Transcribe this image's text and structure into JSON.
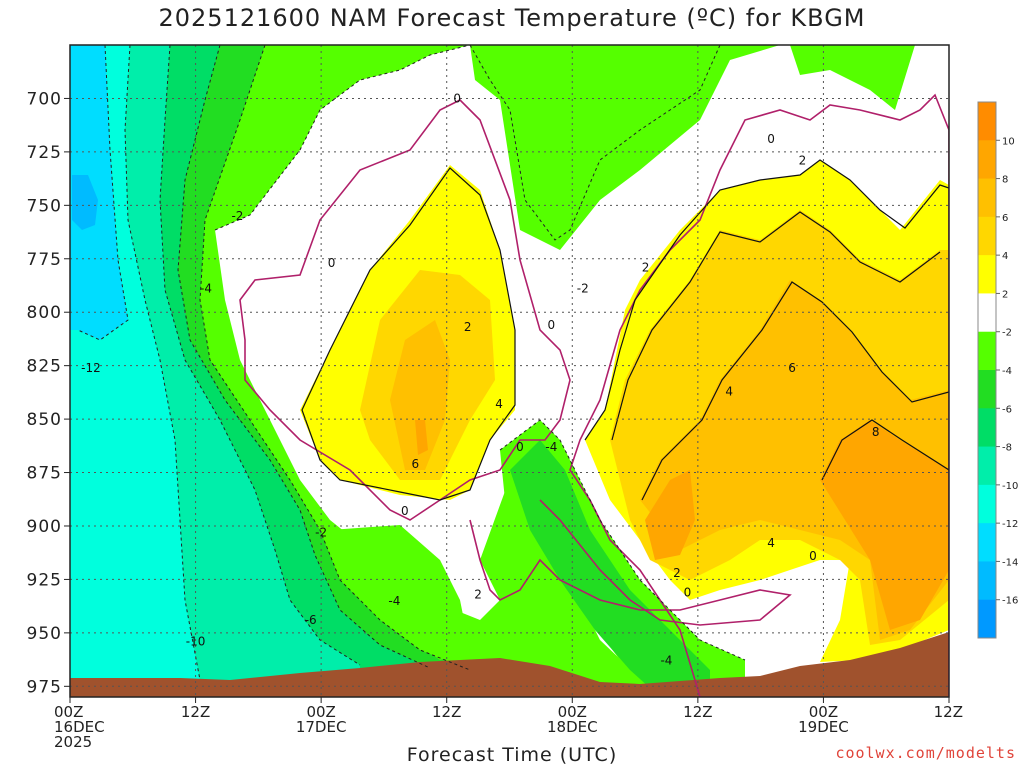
{
  "title": "2025121600 NAM Forecast Temperature (ºC) for KBGM",
  "watermark": "coolwx.com/modelts",
  "chart_data": {
    "type": "heatmap",
    "title": "2025121600 NAM Forecast Temperature (ºC) for KBGM",
    "xlabel": "Forecast Time (UTC)",
    "ylabel": "",
    "x_ticks": [
      {
        "hour": 0,
        "lines": [
          "00Z",
          "16DEC",
          "2025"
        ]
      },
      {
        "hour": 12,
        "lines": [
          "12Z"
        ]
      },
      {
        "hour": 24,
        "lines": [
          "00Z",
          "17DEC"
        ]
      },
      {
        "hour": 36,
        "lines": [
          "12Z"
        ]
      },
      {
        "hour": 48,
        "lines": [
          "00Z",
          "18DEC"
        ]
      },
      {
        "hour": 60,
        "lines": [
          "12Z"
        ]
      },
      {
        "hour": 72,
        "lines": [
          "00Z",
          "19DEC"
        ]
      },
      {
        "hour": 84,
        "lines": [
          "12Z"
        ]
      }
    ],
    "xlim": [
      0,
      84
    ],
    "y_ticks": [
      700,
      725,
      750,
      775,
      800,
      825,
      850,
      875,
      900,
      925,
      950,
      975
    ],
    "ylim": [
      675,
      980
    ],
    "grid": true,
    "colorbar": {
      "labels": [
        "10",
        "8",
        "6",
        "4",
        "2",
        "-2",
        "-4",
        "-6",
        "-8",
        "-10",
        "-12",
        "-14",
        "-16"
      ],
      "colors": [
        "#ff8c00",
        "#ffa600",
        "#ffc000",
        "#ffd700",
        "#ffff00",
        "#ffffff",
        "#55ff00",
        "#22dd22",
        "#00dd66",
        "#00eeaa",
        "#00ffdd",
        "#00ddff",
        "#00bbff",
        "#0099ff"
      ]
    },
    "contour_labels": [
      {
        "text": "0",
        "hour": 37,
        "p": 700
      },
      {
        "text": "0",
        "hour": 25,
        "p": 777
      },
      {
        "text": "-2",
        "hour": 16,
        "p": 755
      },
      {
        "text": "-4",
        "hour": 13,
        "p": 789
      },
      {
        "text": "-12",
        "hour": 2,
        "p": 826
      },
      {
        "text": "2",
        "hour": 38,
        "p": 807
      },
      {
        "text": "4",
        "hour": 41,
        "p": 843
      },
      {
        "text": "6",
        "hour": 33,
        "p": 871
      },
      {
        "text": "0",
        "hour": 32,
        "p": 893
      },
      {
        "text": "0",
        "hour": 43,
        "p": 863
      },
      {
        "text": "-4",
        "hour": 46,
        "p": 863
      },
      {
        "text": "0",
        "hour": 46,
        "p": 806
      },
      {
        "text": "-2",
        "hour": 49,
        "p": 789
      },
      {
        "text": "2",
        "hour": 55,
        "p": 779
      },
      {
        "text": "0",
        "hour": 67,
        "p": 719
      },
      {
        "text": "2",
        "hour": 70,
        "p": 729
      },
      {
        "text": "4",
        "hour": 63,
        "p": 837
      },
      {
        "text": "6",
        "hour": 69,
        "p": 826
      },
      {
        "text": "8",
        "hour": 77,
        "p": 856
      },
      {
        "text": "4",
        "hour": 67,
        "p": 908
      },
      {
        "text": "0",
        "hour": 71,
        "p": 914
      },
      {
        "text": "2",
        "hour": 58,
        "p": 922
      },
      {
        "text": "0",
        "hour": 59,
        "p": 931
      },
      {
        "text": "-4",
        "hour": 57,
        "p": 963
      },
      {
        "text": "-2",
        "hour": 24,
        "p": 903
      },
      {
        "text": "-4",
        "hour": 31,
        "p": 935
      },
      {
        "text": "2",
        "hour": 39,
        "p": 932
      },
      {
        "text": "-6",
        "hour": 23,
        "p": 944
      },
      {
        "text": "-10",
        "hour": 12,
        "p": 954
      }
    ]
  }
}
